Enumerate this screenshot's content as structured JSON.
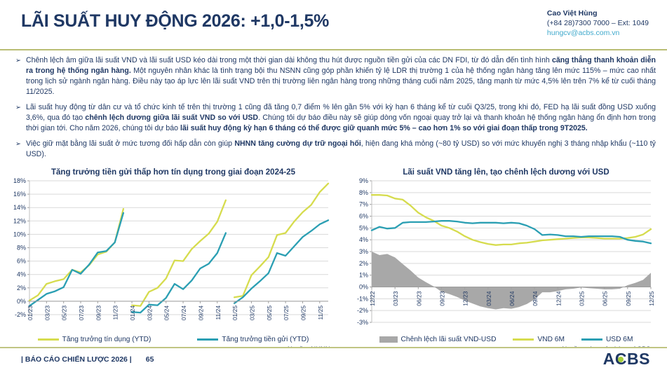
{
  "colors": {
    "navy": "#1f3864",
    "olive_rule": "#b9bd74",
    "credit_line": "#d6dc4e",
    "deposit_line": "#2b9fb3",
    "spread_area": "#a8a8a8",
    "link_teal": "#3fa9cc",
    "logo_dot": "#a6ce39"
  },
  "header": {
    "title": "LÃI SUẤT HUY ĐỘNG 2026: +1,0-1,5%",
    "contact": {
      "name": "Cao Việt Hùng",
      "phone": "(+84 28)7300 7000 – Ext: 1049",
      "email": "hungcv@acbs.com.vn"
    }
  },
  "bullets": [
    {
      "marker": "➢",
      "runs": [
        {
          "t": "Chênh lệch âm giữa lãi suất VND và lãi suất USD kéo dài trong một thời gian dài không thu hút được nguồn tiền gửi của các DN FDI, từ đó dẫn đến tình hình ",
          "b": false
        },
        {
          "t": "căng thẳng thanh khoản diễn ra trong hệ thống ngân hàng.",
          "b": true
        },
        {
          "t": " Một nguyên nhân khác là tình trạng bội thu NSNN cũng góp phần khiến tỷ lệ LDR thị trường 1 của hệ thống ngân hàng tăng lên mức 115% – mức cao nhất trong lịch sử ngành ngân hàng. Điều này tạo áp lực lên lãi suất VND trên thị trường liên ngân hàng trong những tháng cuối năm 2025, tăng mạnh từ mức 4,5% lên trên 7% kể từ cuối tháng 11/2025.",
          "b": false
        }
      ]
    },
    {
      "marker": "➢",
      "runs": [
        {
          "t": "Lãi suất huy động từ dân cư và tổ chức kinh tế trên thị trường 1 cũng đã tăng 0,7 điểm % lên gần 5% với kỳ hạn 6 tháng kể từ cuối Q3/25, trong khi đó, FED hạ lãi suất đồng USD xuống 3,6%, qua đó tạo ",
          "b": false
        },
        {
          "t": "chênh lệch dương giữa lãi suất VND so với USD",
          "b": true
        },
        {
          "t": ". Chúng tôi dự báo điều này sẽ giúp dòng vốn ngoại quay trở lại và thanh khoản hệ thống ngân hàng ổn định hơn trong thời gian tới. Cho năm 2026, chúng tôi dự báo ",
          "b": false
        },
        {
          "t": "lãi suất huy động kỳ hạn 6 tháng có thể được giữ quanh mức 5% – cao hơn 1% so với giai đoạn thấp trong 9T2025.",
          "b": true
        }
      ]
    },
    {
      "marker": "➢",
      "runs": [
        {
          "t": "Việc giữ mặt bằng lãi suất ở mức tương đối hấp dẫn còn giúp ",
          "b": false
        },
        {
          "t": "NHNN tăng cường dự trữ ngoại hối",
          "b": true
        },
        {
          "t": ", hiện đang khá mỏng (~80 tỷ USD) so với mức khuyến nghị 3 tháng nhập khẩu (~110 tỷ USD).",
          "b": false
        }
      ]
    }
  ],
  "chart_data": [
    {
      "type": "line",
      "title": "Tăng trưởng tiền gửi thấp hơn tín dụng trong giai đoạn 2024-25",
      "source": "Nguồn: NHNN",
      "x_count": 36,
      "x_tick_every": 2,
      "x_tick_labels": [
        "01/23",
        "03/23",
        "05/23",
        "07/23",
        "09/23",
        "11/23",
        "01/24",
        "03/24",
        "05/24",
        "07/24",
        "09/24",
        "11/24",
        "01/25",
        "03/25",
        "05/25",
        "07/25",
        "09/25",
        "11/25"
      ],
      "y_ticks": [
        "18%",
        "16%",
        "14%",
        "12%",
        "10%",
        "8%",
        "6%",
        "4%",
        "2%",
        "0%",
        "-2%"
      ],
      "ylim": [
        -2,
        18
      ],
      "grid": true,
      "legend_position": "bottom",
      "series": [
        {
          "name": "Tăng trưởng tín dụng (YTD)",
          "kind": "line",
          "color": "#d6dc4e",
          "segments": [
            {
              "start": 0,
              "values": [
                0.1,
                0.9,
                2.6,
                3.0,
                3.3,
                4.7,
                4.3,
                5.4,
                7.0,
                7.4,
                8.8,
                13.8
              ]
            },
            {
              "start": 12,
              "values": [
                -0.6,
                -0.7,
                1.4,
                2.0,
                3.4,
                6.1,
                6.0,
                7.8,
                9.0,
                10.1,
                11.9,
                15.1
              ]
            },
            {
              "start": 24,
              "values": [
                0.6,
                0.8,
                3.9,
                5.2,
                6.6,
                9.9,
                10.2,
                11.9,
                13.3,
                14.4,
                16.3,
                17.6
              ]
            }
          ]
        },
        {
          "name": "Tăng trưởng tiền gửi (YTD)",
          "kind": "line",
          "color": "#2b9fb3",
          "segments": [
            {
              "start": 0,
              "values": [
                -0.7,
                0.2,
                1.1,
                1.5,
                2.1,
                4.7,
                4.1,
                5.5,
                7.3,
                7.5,
                8.8,
                13.2
              ]
            },
            {
              "start": 12,
              "values": [
                -1.6,
                -1.7,
                -0.5,
                -0.6,
                0.5,
                2.6,
                1.8,
                3.1,
                4.9,
                5.6,
                7.2,
                10.2
              ]
            },
            {
              "start": 24,
              "values": [
                -0.3,
                0.6,
                1.9,
                3.0,
                4.2,
                7.2,
                6.8,
                8.2,
                9.6,
                10.5,
                11.5,
                12.1
              ]
            }
          ]
        }
      ]
    },
    {
      "type": "line",
      "title": "Lãi suất VND tăng lên, tạo chênh lệch dương với USD",
      "source": "Nguồn: các ngân hàng, ACBS",
      "x_count": 37,
      "x_tick_every": 3,
      "x_tick_labels": [
        "12/22",
        "03/23",
        "06/23",
        "09/23",
        "12/23",
        "03/24",
        "06/24",
        "09/24",
        "12/24",
        "03/25",
        "06/25",
        "09/25",
        "12/25"
      ],
      "y_ticks": [
        "9%",
        "8%",
        "7%",
        "6%",
        "5%",
        "4%",
        "3%",
        "2%",
        "1%",
        "0%",
        "-1%",
        "-2%",
        "-3%"
      ],
      "ylim": [
        -3,
        9
      ],
      "grid": true,
      "legend_position": "bottom",
      "series": [
        {
          "name": "Chênh lệch lãi suất VND-USD",
          "kind": "area",
          "color": "#a8a8a8",
          "segments": [
            {
              "start": 0,
              "values": [
                3.0,
                2.7,
                2.8,
                2.5,
                1.95,
                1.4,
                0.8,
                0.4,
                0.05,
                -0.4,
                -0.6,
                -0.85,
                -1.15,
                -1.4,
                -1.65,
                -1.8,
                -1.9,
                -1.8,
                -1.85,
                -1.7,
                -1.45,
                -1.05,
                -0.45,
                -0.45,
                -0.35,
                -0.2,
                -0.15,
                -0.05,
                -0.1,
                -0.15,
                -0.2,
                -0.2,
                -0.15,
                0.15,
                0.35,
                0.6,
                1.2
              ]
            }
          ]
        },
        {
          "name": "VND 6M",
          "kind": "line",
          "color": "#d6dc4e",
          "segments": [
            {
              "start": 0,
              "values": [
                7.8,
                7.8,
                7.75,
                7.5,
                7.4,
                6.9,
                6.3,
                5.9,
                5.6,
                5.2,
                5.0,
                4.7,
                4.3,
                4.0,
                3.8,
                3.65,
                3.55,
                3.6,
                3.6,
                3.7,
                3.75,
                3.85,
                3.95,
                4.0,
                4.05,
                4.1,
                4.15,
                4.2,
                4.2,
                4.15,
                4.1,
                4.1,
                4.1,
                4.15,
                4.25,
                4.45,
                4.9
              ]
            }
          ]
        },
        {
          "name": "USD 6M",
          "kind": "line",
          "color": "#2b9fb3",
          "segments": [
            {
              "start": 0,
              "values": [
                4.8,
                5.1,
                4.95,
                5.0,
                5.45,
                5.5,
                5.5,
                5.5,
                5.55,
                5.6,
                5.6,
                5.55,
                5.45,
                5.4,
                5.45,
                5.45,
                5.45,
                5.4,
                5.45,
                5.4,
                5.2,
                4.9,
                4.4,
                4.45,
                4.4,
                4.3,
                4.3,
                4.25,
                4.3,
                4.3,
                4.3,
                4.3,
                4.25,
                4.0,
                3.9,
                3.85,
                3.7
              ]
            }
          ]
        }
      ]
    }
  ],
  "footer": {
    "left": "|  BÁO CÁO CHIẾN LƯỢC 2026  |",
    "page": "65",
    "logo": {
      "a": "A",
      "c": "C",
      "bs": "BS"
    }
  }
}
